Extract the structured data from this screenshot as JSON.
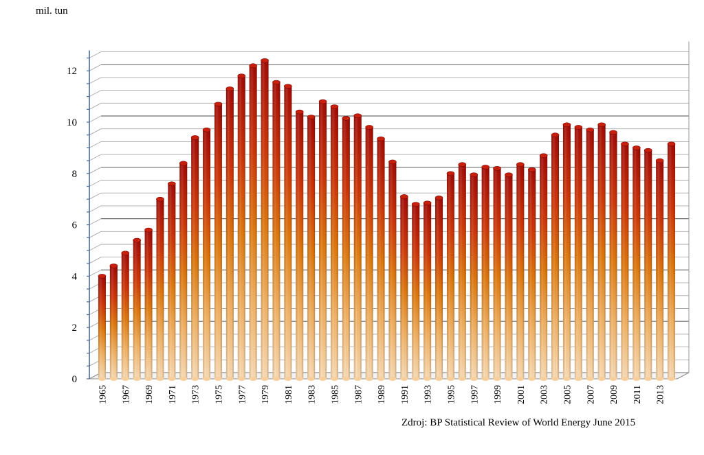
{
  "chart_data": {
    "type": "bar",
    "unit_label": "mil. tun",
    "source": "Zdroj: BP Statistical Review of World Energy June 2015",
    "ylim": [
      0,
      12.9
    ],
    "yticks": [
      0,
      2,
      4,
      6,
      8,
      10,
      12
    ],
    "grid": true,
    "legend": "none",
    "colors": {
      "bar_top": "#b01008",
      "bar_mid": "#e0780c",
      "bar_bottom": "#f8d6a8",
      "axis": "#4a6a9a",
      "grid": "#7a7a7a"
    },
    "categories": [
      "1965",
      "1966",
      "1967",
      "1968",
      "1969",
      "1970",
      "1971",
      "1972",
      "1973",
      "1974",
      "1975",
      "1976",
      "1977",
      "1978",
      "1979",
      "1980",
      "1981",
      "1982",
      "1983",
      "1984",
      "1985",
      "1986",
      "1987",
      "1988",
      "1989",
      "1990",
      "1991",
      "1992",
      "1993",
      "1994",
      "1995",
      "1996",
      "1997",
      "1998",
      "1999",
      "2000",
      "2001",
      "2002",
      "2003",
      "2004",
      "2005",
      "2006",
      "2007",
      "2008",
      "2009",
      "2010",
      "2011",
      "2012",
      "2013",
      "2014"
    ],
    "category_labels_shown": [
      "1965",
      "1967",
      "1969",
      "1971",
      "1973",
      "1975",
      "1977",
      "1979",
      "1981",
      "1983",
      "1985",
      "1987",
      "1989",
      "1991",
      "1993",
      "1995",
      "1997",
      "1999",
      "2001",
      "2003",
      "2005",
      "2007",
      "2009",
      "2011",
      "2013"
    ],
    "values": [
      4.0,
      4.4,
      4.9,
      5.4,
      5.8,
      7.0,
      7.6,
      8.4,
      9.4,
      9.7,
      10.7,
      11.3,
      11.8,
      12.2,
      12.4,
      11.55,
      11.4,
      10.4,
      10.2,
      10.8,
      10.6,
      10.15,
      10.25,
      9.8,
      9.35,
      8.45,
      7.1,
      6.8,
      6.85,
      7.05,
      8.0,
      8.35,
      7.95,
      8.25,
      8.2,
      7.95,
      8.35,
      8.15,
      8.7,
      9.5,
      9.9,
      9.8,
      9.7,
      9.9,
      9.6,
      9.15,
      9.0,
      8.9,
      8.5,
      9.15
    ]
  }
}
